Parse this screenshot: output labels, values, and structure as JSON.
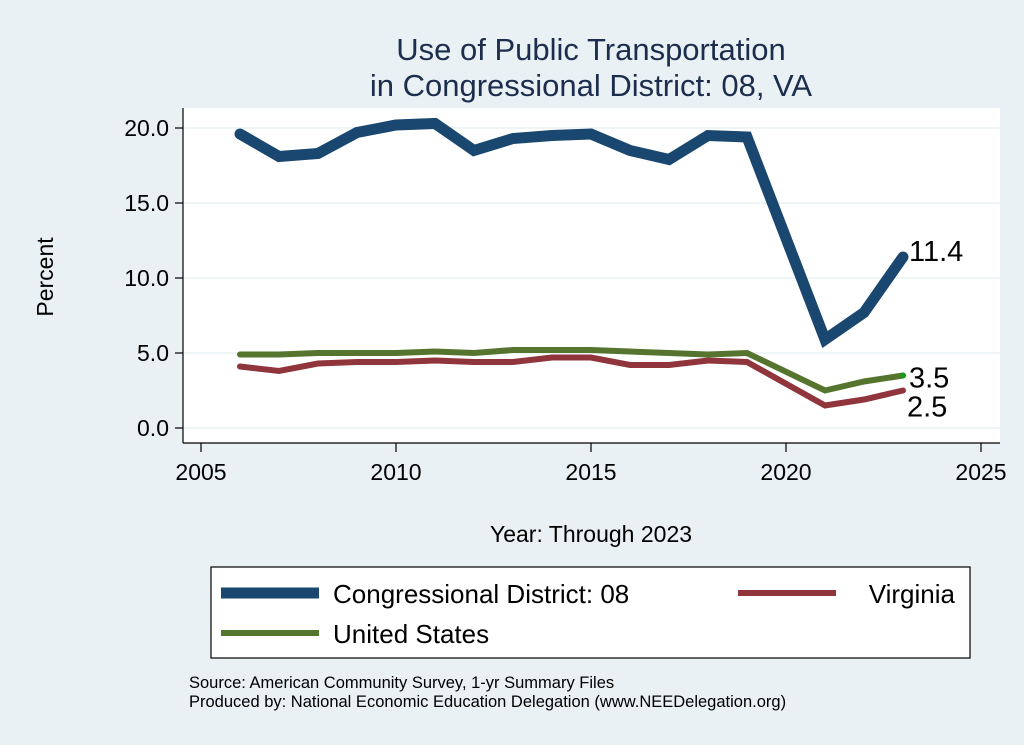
{
  "chart_data": {
    "type": "line",
    "title": [
      "Use of Public Transportation",
      "in Congressional District: 08, VA"
    ],
    "xlabel": "Year: Through 2023",
    "ylabel": "Percent",
    "xlim": [
      2005,
      2025
    ],
    "ylim": [
      0,
      20
    ],
    "xticks": [
      2005,
      2010,
      2015,
      2020,
      2025
    ],
    "xtick_labels": [
      "2005",
      "2010",
      "2015",
      "2020",
      "2025"
    ],
    "yticks": [
      0,
      5,
      10,
      15,
      20
    ],
    "ytick_labels": [
      "0.0",
      "5.0",
      "10.0",
      "15.0",
      "20.0"
    ],
    "grid": true,
    "legend_position": "bottom",
    "x": [
      2006,
      2007,
      2008,
      2009,
      2010,
      2011,
      2012,
      2013,
      2014,
      2015,
      2016,
      2017,
      2018,
      2019,
      2021,
      2022,
      2023
    ],
    "series": [
      {
        "name": "Congressional District: 08",
        "color": "#1a476f",
        "values": [
          19.6,
          18.1,
          18.3,
          19.7,
          20.2,
          20.3,
          18.5,
          19.3,
          19.5,
          19.6,
          18.5,
          17.9,
          19.5,
          19.4,
          5.9,
          7.7,
          11.4
        ],
        "end_label": "11.4"
      },
      {
        "name": "Virginia",
        "color": "#90353b",
        "values": [
          4.1,
          3.8,
          4.3,
          4.4,
          4.4,
          4.5,
          4.4,
          4.4,
          4.7,
          4.7,
          4.2,
          4.2,
          4.5,
          4.4,
          1.5,
          1.9,
          2.5
        ],
        "end_label": "2.5"
      },
      {
        "name": "United States",
        "color": "#55752f",
        "values": [
          4.9,
          4.9,
          5.0,
          5.0,
          5.0,
          5.1,
          5.0,
          5.2,
          5.2,
          5.2,
          5.1,
          5.0,
          4.9,
          5.0,
          2.5,
          3.1,
          3.5
        ],
        "end_label": "3.5"
      }
    ],
    "notes": [
      "Source: American Community Survey, 1-yr Summary Files",
      "Produced by: National Economic Education Delegation (www.NEEDelegation.org)"
    ]
  }
}
